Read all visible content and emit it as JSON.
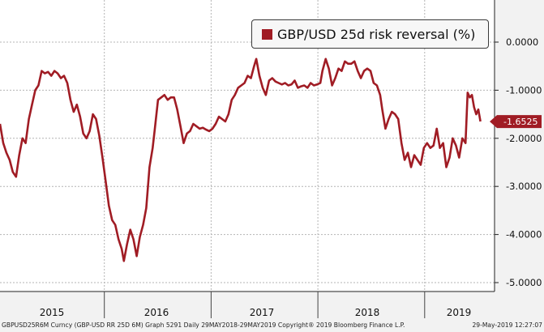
{
  "chart_data": {
    "type": "line",
    "legend": {
      "label": "GBP/USD 25d risk reversal (%)",
      "placement": "top-right"
    },
    "yticks": [
      "0.0000",
      "-1.0000",
      "-2.0000",
      "-3.0000",
      "-4.0000",
      "-5.0000"
    ],
    "ylim": [
      -5.0,
      0.0
    ],
    "xticks": [
      "2015",
      "2016",
      "2017",
      "2018",
      "2019"
    ],
    "last_value_label": "-1.6525",
    "last_value": -1.6525,
    "grid": true,
    "colors": {
      "series": "#a01c24",
      "grid": "#b4b4b4",
      "background": "#ffffff"
    },
    "series": [
      {
        "name": "GBP/USD 25d risk reversal (%)",
        "values": [
          [
            2015.0,
            -1.7
          ],
          [
            2015.03,
            -2.1
          ],
          [
            2015.06,
            -2.3
          ],
          [
            2015.09,
            -2.45
          ],
          [
            2015.12,
            -2.7
          ],
          [
            2015.15,
            -2.8
          ],
          [
            2015.18,
            -2.35
          ],
          [
            2015.21,
            -2.0
          ],
          [
            2015.24,
            -2.1
          ],
          [
            2015.27,
            -1.6
          ],
          [
            2015.3,
            -1.3
          ],
          [
            2015.33,
            -1.0
          ],
          [
            2015.36,
            -0.9
          ],
          [
            2015.39,
            -0.6
          ],
          [
            2015.42,
            -0.65
          ],
          [
            2015.45,
            -0.62
          ],
          [
            2015.48,
            -0.7
          ],
          [
            2015.51,
            -0.6
          ],
          [
            2015.54,
            -0.65
          ],
          [
            2015.57,
            -0.75
          ],
          [
            2015.6,
            -0.7
          ],
          [
            2015.63,
            -0.85
          ],
          [
            2015.66,
            -1.2
          ],
          [
            2015.69,
            -1.45
          ],
          [
            2015.72,
            -1.3
          ],
          [
            2015.75,
            -1.55
          ],
          [
            2015.78,
            -1.9
          ],
          [
            2015.81,
            -2.0
          ],
          [
            2015.84,
            -1.85
          ],
          [
            2015.87,
            -1.5
          ],
          [
            2015.9,
            -1.6
          ],
          [
            2015.93,
            -1.95
          ],
          [
            2015.96,
            -2.4
          ],
          [
            2015.99,
            -2.9
          ],
          [
            2016.02,
            -3.4
          ],
          [
            2016.05,
            -3.7
          ],
          [
            2016.08,
            -3.8
          ],
          [
            2016.11,
            -4.1
          ],
          [
            2016.14,
            -4.3
          ],
          [
            2016.16,
            -4.55
          ],
          [
            2016.19,
            -4.2
          ],
          [
            2016.22,
            -3.9
          ],
          [
            2016.25,
            -4.1
          ],
          [
            2016.28,
            -4.45
          ],
          [
            2016.31,
            -4.05
          ],
          [
            2016.34,
            -3.8
          ],
          [
            2016.37,
            -3.45
          ],
          [
            2016.4,
            -2.6
          ],
          [
            2016.43,
            -2.2
          ],
          [
            2016.45,
            -1.8
          ],
          [
            2016.48,
            -1.2
          ],
          [
            2016.51,
            -1.15
          ],
          [
            2016.54,
            -1.1
          ],
          [
            2016.57,
            -1.2
          ],
          [
            2016.6,
            -1.15
          ],
          [
            2016.63,
            -1.15
          ],
          [
            2016.66,
            -1.4
          ],
          [
            2016.69,
            -1.75
          ],
          [
            2016.72,
            -2.1
          ],
          [
            2016.75,
            -1.9
          ],
          [
            2016.78,
            -1.85
          ],
          [
            2016.81,
            -1.7
          ],
          [
            2016.84,
            -1.75
          ],
          [
            2016.87,
            -1.8
          ],
          [
            2016.9,
            -1.78
          ],
          [
            2016.93,
            -1.82
          ],
          [
            2016.96,
            -1.85
          ],
          [
            2016.99,
            -1.8
          ],
          [
            2017.02,
            -1.7
          ],
          [
            2017.05,
            -1.55
          ],
          [
            2017.08,
            -1.6
          ],
          [
            2017.11,
            -1.65
          ],
          [
            2017.14,
            -1.5
          ],
          [
            2017.17,
            -1.2
          ],
          [
            2017.2,
            -1.1
          ],
          [
            2017.23,
            -0.95
          ],
          [
            2017.26,
            -0.9
          ],
          [
            2017.29,
            -0.85
          ],
          [
            2017.32,
            -0.7
          ],
          [
            2017.35,
            -0.75
          ],
          [
            2017.38,
            -0.5
          ],
          [
            2017.4,
            -0.35
          ],
          [
            2017.43,
            -0.7
          ],
          [
            2017.46,
            -0.95
          ],
          [
            2017.49,
            -1.1
          ],
          [
            2017.52,
            -0.8
          ],
          [
            2017.55,
            -0.75
          ],
          [
            2017.58,
            -0.82
          ],
          [
            2017.61,
            -0.85
          ],
          [
            2017.64,
            -0.88
          ],
          [
            2017.67,
            -0.85
          ],
          [
            2017.7,
            -0.9
          ],
          [
            2017.73,
            -0.88
          ],
          [
            2017.76,
            -0.8
          ],
          [
            2017.79,
            -0.95
          ],
          [
            2017.82,
            -0.92
          ],
          [
            2017.85,
            -0.9
          ],
          [
            2017.88,
            -0.95
          ],
          [
            2017.91,
            -0.85
          ],
          [
            2017.94,
            -0.9
          ],
          [
            2017.97,
            -0.88
          ],
          [
            2018.0,
            -0.85
          ],
          [
            2018.02,
            -0.6
          ],
          [
            2018.05,
            -0.35
          ],
          [
            2018.08,
            -0.55
          ],
          [
            2018.11,
            -0.9
          ],
          [
            2018.14,
            -0.75
          ],
          [
            2018.17,
            -0.55
          ],
          [
            2018.2,
            -0.6
          ],
          [
            2018.23,
            -0.4
          ],
          [
            2018.26,
            -0.45
          ],
          [
            2018.29,
            -0.45
          ],
          [
            2018.32,
            -0.4
          ],
          [
            2018.35,
            -0.6
          ],
          [
            2018.38,
            -0.75
          ],
          [
            2018.41,
            -0.6
          ],
          [
            2018.44,
            -0.55
          ],
          [
            2018.47,
            -0.6
          ],
          [
            2018.5,
            -0.85
          ],
          [
            2018.53,
            -0.9
          ],
          [
            2018.56,
            -1.1
          ],
          [
            2018.58,
            -1.4
          ],
          [
            2018.61,
            -1.8
          ],
          [
            2018.64,
            -1.6
          ],
          [
            2018.67,
            -1.45
          ],
          [
            2018.7,
            -1.5
          ],
          [
            2018.73,
            -1.6
          ],
          [
            2018.76,
            -2.1
          ],
          [
            2018.79,
            -2.45
          ],
          [
            2018.82,
            -2.3
          ],
          [
            2018.85,
            -2.6
          ],
          [
            2018.88,
            -2.35
          ],
          [
            2018.91,
            -2.45
          ],
          [
            2018.94,
            -2.55
          ],
          [
            2018.97,
            -2.2
          ],
          [
            2019.0,
            -2.1
          ],
          [
            2019.03,
            -2.2
          ],
          [
            2019.06,
            -2.15
          ],
          [
            2019.09,
            -1.8
          ],
          [
            2019.12,
            -2.2
          ],
          [
            2019.15,
            -2.1
          ],
          [
            2019.18,
            -2.6
          ],
          [
            2019.21,
            -2.4
          ],
          [
            2019.24,
            -2.0
          ],
          [
            2019.27,
            -2.15
          ],
          [
            2019.3,
            -2.4
          ],
          [
            2019.33,
            -2.0
          ],
          [
            2019.36,
            -2.1
          ],
          [
            2019.38,
            -1.05
          ],
          [
            2019.4,
            -1.15
          ],
          [
            2019.42,
            -1.1
          ],
          [
            2019.44,
            -1.35
          ],
          [
            2019.46,
            -1.5
          ],
          [
            2019.48,
            -1.4
          ],
          [
            2019.5,
            -1.65
          ]
        ]
      }
    ]
  },
  "footer": {
    "left": "GBPUSD25R6M Curncy (GBP-USD RR 25D 6M) Graph 5291  Daily 29MAY2018-29MAY2019  Copyright® 2019 Bloomberg Finance L.P.",
    "right": "29-May-2019 12:27:07"
  }
}
